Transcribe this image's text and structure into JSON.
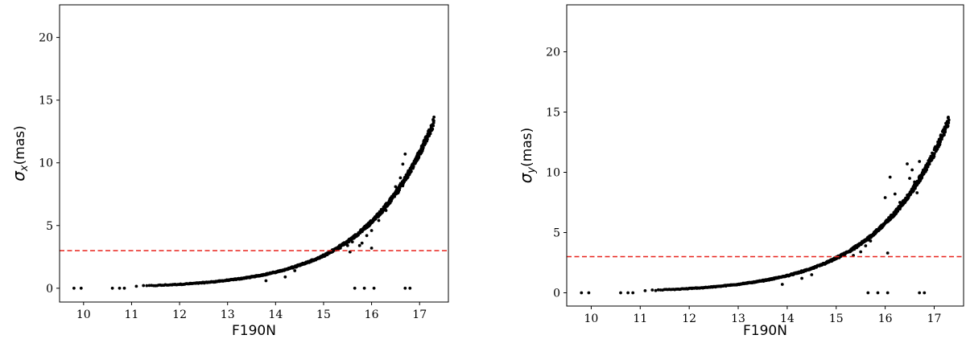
{
  "chart_data": [
    {
      "type": "scatter",
      "xlabel": "F190N",
      "ylabel": {
        "symbol": "σ",
        "subscript": "x",
        "unit": "(mas)"
      },
      "xlim": [
        9.5,
        17.6
      ],
      "ylim": [
        -1.1,
        22.6
      ],
      "xticks": [
        10,
        11,
        12,
        13,
        14,
        15,
        16,
        17
      ],
      "yticks": [
        0,
        5,
        10,
        15,
        20
      ],
      "threshold_line": {
        "y": 3.0,
        "color": "#e8231d",
        "style": "dashed"
      },
      "marker_color": "#000000",
      "curve": {
        "a": 3.01,
        "b": 0.708,
        "x0": 15.2,
        "xmin": 11.1,
        "xmax": 17.3
      },
      "outliers": [
        [
          9.8,
          0
        ],
        [
          9.95,
          0
        ],
        [
          10.6,
          0
        ],
        [
          10.75,
          0
        ],
        [
          10.85,
          0
        ],
        [
          15.65,
          0
        ],
        [
          15.85,
          0
        ],
        [
          16.05,
          0
        ],
        [
          16.7,
          0
        ],
        [
          16.8,
          0
        ],
        [
          15.35,
          3.2
        ],
        [
          15.5,
          3.4
        ],
        [
          15.6,
          3.7
        ],
        [
          15.55,
          2.9
        ],
        [
          15.75,
          3.4
        ],
        [
          15.8,
          3.6
        ],
        [
          15.9,
          4.2
        ],
        [
          16.0,
          4.6
        ],
        [
          16.0,
          3.2
        ],
        [
          16.15,
          5.4
        ],
        [
          16.3,
          6.2
        ],
        [
          16.4,
          7.2
        ],
        [
          16.5,
          8.1
        ],
        [
          16.55,
          7.6
        ],
        [
          16.6,
          8.8
        ],
        [
          16.65,
          9.9
        ],
        [
          14.2,
          0.9
        ],
        [
          14.4,
          1.4
        ],
        [
          13.8,
          0.6
        ],
        [
          16.7,
          10.7
        ]
      ]
    },
    {
      "type": "scatter",
      "xlabel": "F190N",
      "ylabel": {
        "symbol": "σ",
        "subscript": "y",
        "unit": "(mas)"
      },
      "xlim": [
        9.5,
        17.6
      ],
      "ylim": [
        -1.1,
        23.9
      ],
      "xticks": [
        10,
        11,
        12,
        13,
        14,
        15,
        16,
        17
      ],
      "yticks": [
        0,
        5,
        10,
        15,
        20
      ],
      "threshold_line": {
        "y": 3.0,
        "color": "#e8231d",
        "style": "dashed"
      },
      "marker_color": "#000000",
      "curve": {
        "a": 3.3,
        "b": 0.7,
        "x0": 15.2,
        "xmin": 11.1,
        "xmax": 17.3
      },
      "outliers": [
        [
          9.8,
          0
        ],
        [
          9.95,
          0
        ],
        [
          10.6,
          0
        ],
        [
          10.75,
          0
        ],
        [
          10.85,
          0
        ],
        [
          15.65,
          0
        ],
        [
          15.85,
          0
        ],
        [
          16.05,
          0
        ],
        [
          16.7,
          0
        ],
        [
          16.8,
          0
        ],
        [
          15.35,
          3.1
        ],
        [
          15.5,
          3.4
        ],
        [
          15.6,
          3.9
        ],
        [
          15.7,
          4.3
        ],
        [
          15.8,
          5.0
        ],
        [
          15.9,
          5.5
        ],
        [
          16.05,
          3.3
        ],
        [
          16.1,
          9.6
        ],
        [
          16.2,
          8.2
        ],
        [
          16.3,
          7.5
        ],
        [
          16.45,
          10.7
        ],
        [
          16.5,
          9.5
        ],
        [
          16.6,
          9.2
        ],
        [
          16.65,
          8.3
        ],
        [
          16.7,
          10.9
        ],
        [
          14.5,
          1.5
        ],
        [
          14.3,
          1.2
        ],
        [
          13.9,
          0.7
        ],
        [
          16.0,
          7.9
        ],
        [
          16.55,
          10.2
        ]
      ]
    }
  ]
}
